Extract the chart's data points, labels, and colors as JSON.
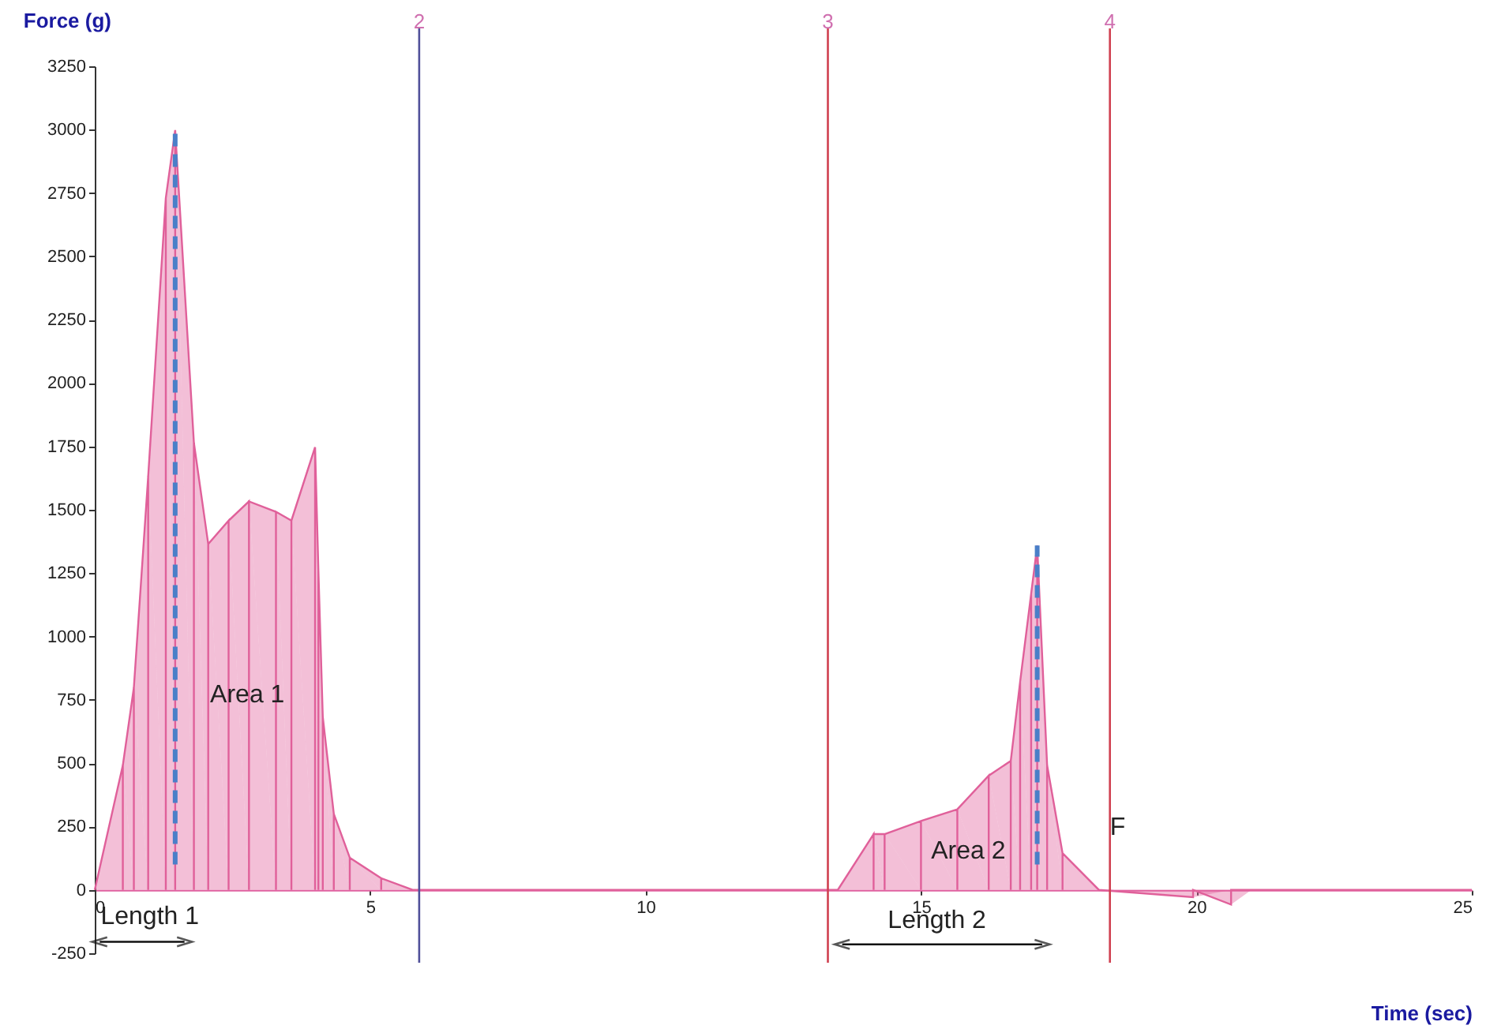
{
  "chart_data": {
    "type": "area",
    "xlabel": "Time (sec)",
    "ylabel": "Force (g)",
    "xlim": [
      0,
      25
    ],
    "ylim": [
      -250,
      3250
    ],
    "xticks": [
      0,
      5,
      10,
      15,
      20,
      25
    ],
    "yticks": [
      -250,
      0,
      250,
      500,
      750,
      1000,
      1250,
      1500,
      1750,
      2000,
      2250,
      2500,
      2750,
      3000,
      3250
    ],
    "grid": false,
    "series": [
      {
        "color": "#e0609a",
        "x": [
          0,
          0.51,
          0.71,
          0.97,
          1.29,
          1.46,
          1.8,
          2.06,
          2.43,
          2.8,
          3.29,
          3.57,
          4.0,
          4.06,
          4.14,
          4.34,
          4.63,
          5.2,
          5.77,
          13.49,
          14.14,
          14.34,
          15.0,
          15.66,
          16.23,
          16.63,
          16.8,
          17.0,
          17.11,
          17.29,
          17.57,
          18.23,
          19.94,
          20.63,
          21.0,
          25
        ],
        "values": [
          0,
          492,
          798,
          1631,
          2730,
          2998,
          1764,
          1365,
          1457,
          1533,
          1492,
          1457,
          1747,
          1261,
          682,
          300,
          127,
          46,
          0,
          0,
          220,
          220,
          272,
          318,
          451,
          509,
          821,
          1168,
          1359,
          492,
          145,
          0,
          -29,
          -58,
          0,
          0
        ]
      },
      {
        "type": "line",
        "color": "#4a7fc8",
        "line_style": "dashed",
        "x": [
          1.46,
          1.46
        ],
        "values": [
          100,
          2998
        ]
      },
      {
        "type": "line",
        "color": "#4a7fc8",
        "line_style": "dashed",
        "x": [
          17.11,
          17.11
        ],
        "values": [
          100,
          1359
        ]
      }
    ],
    "ref_lines": [
      {
        "axis": "x",
        "value": 5.89,
        "color": "#50509a"
      },
      {
        "axis": "x",
        "value": 13.31,
        "color": "#d04050"
      },
      {
        "axis": "x",
        "value": 18.43,
        "color": "#d04050"
      }
    ],
    "annotations": [
      {
        "text": "2",
        "x": 5.89,
        "y": 3250
      },
      {
        "text": "3",
        "x": 13.31,
        "y": 3250
      },
      {
        "text": "4",
        "x": 18.43,
        "y": 3250
      },
      "Area 1",
      "Area 2",
      "Length 1",
      "Length 2",
      "F"
    ]
  }
}
